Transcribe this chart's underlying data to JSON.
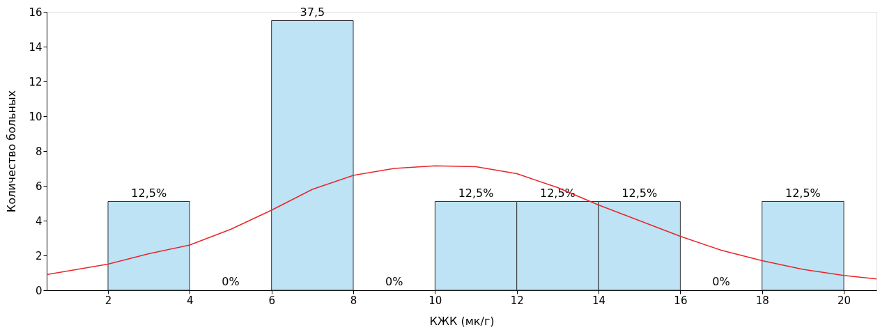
{
  "chart_data": {
    "type": "histogram",
    "xlabel": "КЖК (мк/г)",
    "ylabel": "Количество больных",
    "bins": [
      2,
      4,
      6,
      8,
      10,
      12,
      14,
      16,
      18,
      20
    ],
    "values": [
      5.1,
      0,
      15.5,
      0,
      5.1,
      5.1,
      5.1,
      0,
      5.1
    ],
    "annotations": [
      {
        "text": "12,5%",
        "x": 3,
        "y": 5.1
      },
      {
        "text": "0%",
        "x": 5,
        "y": 0
      },
      {
        "text": "37,5",
        "x": 7,
        "y": 15.5
      },
      {
        "text": "0%",
        "x": 9,
        "y": 0
      },
      {
        "text": "12,5%",
        "x": 11,
        "y": 5.1
      },
      {
        "text": "12,5%",
        "x": 13,
        "y": 5.1
      },
      {
        "text": "12,5%",
        "x": 15,
        "y": 5.1
      },
      {
        "text": "0%",
        "x": 17,
        "y": 0
      },
      {
        "text": "12,5%",
        "x": 19,
        "y": 5.1
      }
    ],
    "color": "#bde3f5",
    "series": [
      {
        "type": "line",
        "color": "#e8262a",
        "x": [
          0.5,
          2,
          3,
          4,
          5,
          6,
          7,
          8,
          9,
          10,
          11,
          12,
          13,
          14,
          15,
          16,
          17,
          18,
          19,
          20,
          20.8
        ],
        "values": [
          0.9,
          1.5,
          2.1,
          2.6,
          3.5,
          4.6,
          5.8,
          6.6,
          7.0,
          7.15,
          7.1,
          6.7,
          5.9,
          4.9,
          4.0,
          3.1,
          2.3,
          1.7,
          1.2,
          0.85,
          0.65
        ]
      }
    ],
    "xlim": [
      0.5,
      20.8
    ],
    "xticks": [
      2,
      4,
      6,
      8,
      10,
      12,
      14,
      16,
      18,
      20
    ],
    "ylim": [
      0,
      16
    ],
    "yticks": [
      0,
      2,
      4,
      6,
      8,
      10,
      12,
      14,
      16
    ],
    "grid": false,
    "marker": "none",
    "line_style": "solid"
  }
}
